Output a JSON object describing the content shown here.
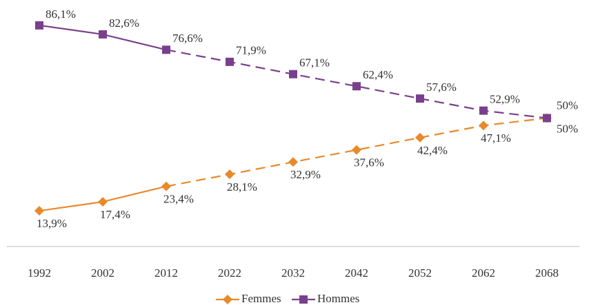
{
  "chart_data": {
    "type": "line",
    "categories": [
      "1992",
      "2002",
      "2012",
      "2022",
      "2032",
      "2042",
      "2052",
      "2062",
      "2068"
    ],
    "ylim": [
      0,
      100
    ],
    "series": [
      {
        "name": "Femmes",
        "color": "#e8892b",
        "values": [
          13.9,
          17.4,
          23.4,
          28.1,
          32.9,
          37.6,
          42.4,
          47.1,
          50
        ],
        "value_labels": [
          "13,9%",
          "17,4%",
          "23,4%",
          "28,1%",
          "32,9%",
          "37,6%",
          "42,4%",
          "47,1%",
          "50%"
        ]
      },
      {
        "name": "Hommes",
        "color": "#7a3f8c",
        "values": [
          86.1,
          82.6,
          76.6,
          71.9,
          67.1,
          62.4,
          57.6,
          52.9,
          50
        ],
        "value_labels": [
          "86,1%",
          "82,6%",
          "76,6%",
          "71,9%",
          "67,1%",
          "62,4%",
          "57,6%",
          "52,9%",
          "50%"
        ]
      }
    ]
  }
}
